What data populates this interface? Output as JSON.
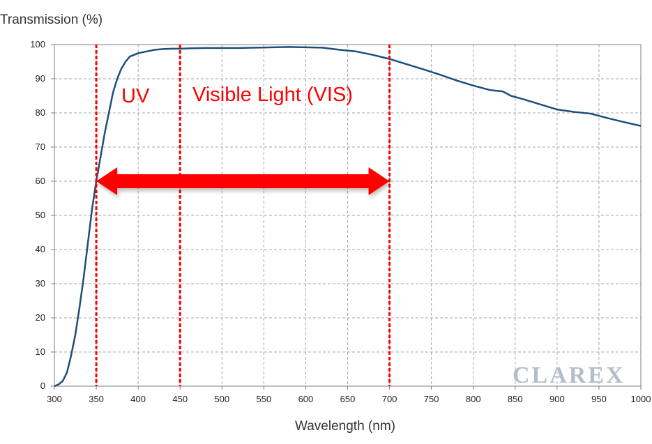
{
  "chart_data": {
    "type": "line",
    "ylabel": "Transmission (%)",
    "xlabel": "Wavelength (nm)",
    "xlim": [
      300,
      1000
    ],
    "ylim": [
      0,
      100
    ],
    "x_ticks": [
      "300",
      "350",
      "400",
      "450",
      "500",
      "550",
      "600",
      "650",
      "700",
      "750",
      "800",
      "850",
      "900",
      "950",
      "1000"
    ],
    "y_ticks": [
      "0",
      "10",
      "20",
      "30",
      "40",
      "50",
      "60",
      "70",
      "80",
      "90",
      "100"
    ],
    "grid": true,
    "series": [
      {
        "color": "#1f4e79",
        "x": [
          300,
          305,
          310,
          315,
          320,
          325,
          330,
          335,
          340,
          345,
          350,
          355,
          360,
          365,
          370,
          375,
          380,
          385,
          390,
          400,
          410,
          420,
          430,
          440,
          450,
          460,
          480,
          500,
          520,
          540,
          560,
          580,
          600,
          620,
          640,
          660,
          680,
          700,
          720,
          740,
          760,
          780,
          800,
          820,
          835,
          845,
          860,
          880,
          900,
          920,
          940,
          960,
          980,
          1000
        ],
        "y": [
          0,
          0.5,
          1.5,
          4,
          9,
          15,
          23,
          32,
          42,
          52,
          60,
          67,
          74,
          80,
          86,
          90,
          93,
          95,
          96.5,
          97.5,
          98,
          98.5,
          98.7,
          98.8,
          98.8,
          98.9,
          99,
          99,
          99,
          99.1,
          99.2,
          99.3,
          99.2,
          99.1,
          98.5,
          98,
          97,
          95.8,
          94.3,
          92.8,
          91.2,
          89.5,
          88,
          86.7,
          86.3,
          85,
          84,
          82.5,
          81,
          80.3,
          79.8,
          78.5,
          77.3,
          76.2
        ]
      }
    ],
    "markers": [
      {
        "x": 350,
        "color": "#ff0000"
      },
      {
        "x": 450,
        "color": "#ff0000"
      },
      {
        "x": 700,
        "color": "#ff0000"
      }
    ],
    "annotations": [
      {
        "text": "UV",
        "color": "#ff0000"
      },
      {
        "text": "Visible Light (VIS)",
        "color": "#ff0000"
      }
    ],
    "range_arrow": {
      "from": 350,
      "to": 700,
      "y": 60,
      "color": "#ff0000"
    }
  },
  "watermark": "CLAREX"
}
